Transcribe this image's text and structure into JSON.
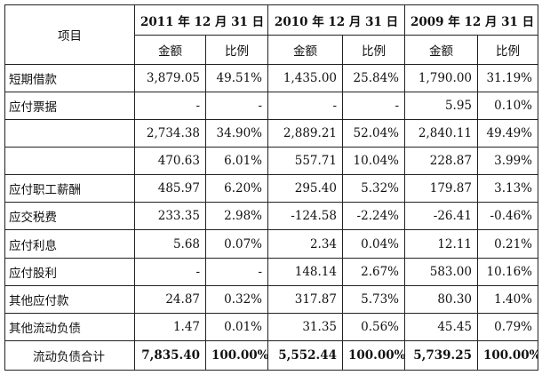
{
  "table": {
    "item_header": "项目",
    "years": [
      "2011 年 12 月 31 日",
      "2010 年 12 月 31 日",
      "2009 年 12 月 31 日"
    ],
    "sub_amount": "金额",
    "sub_ratio": "比例",
    "rows": [
      {
        "label": "短期借款",
        "v": [
          "3,879.05",
          "49.51%",
          "1,435.00",
          "25.84%",
          "1,790.00",
          "31.19%"
        ]
      },
      {
        "label": "应付票据",
        "v": [
          "-",
          "-",
          "-",
          "-",
          "5.95",
          "0.10%"
        ]
      },
      {
        "label": "",
        "v": [
          "2,734.38",
          "34.90%",
          "2,889.21",
          "52.04%",
          "2,840.11",
          "49.49%"
        ]
      },
      {
        "label": "",
        "v": [
          "470.63",
          "6.01%",
          "557.71",
          "10.04%",
          "228.87",
          "3.99%"
        ]
      },
      {
        "label": "应付职工薪酬",
        "v": [
          "485.97",
          "6.20%",
          "295.40",
          "5.32%",
          "179.87",
          "3.13%"
        ]
      },
      {
        "label": "应交税费",
        "v": [
          "233.35",
          "2.98%",
          "-124.58",
          "-2.24%",
          "-26.41",
          "-0.46%"
        ]
      },
      {
        "label": "应付利息",
        "v": [
          "5.68",
          "0.07%",
          "2.34",
          "0.04%",
          "12.11",
          "0.21%"
        ]
      },
      {
        "label": "应付股利",
        "v": [
          "-",
          "-",
          "148.14",
          "2.67%",
          "583.00",
          "10.16%"
        ]
      },
      {
        "label": "其他应付款",
        "v": [
          "24.87",
          "0.32%",
          "317.87",
          "5.73%",
          "80.30",
          "1.40%"
        ]
      },
      {
        "label": "其他流动负债",
        "v": [
          "1.47",
          "0.01%",
          "31.35",
          "0.56%",
          "45.45",
          "0.79%"
        ]
      }
    ],
    "total": {
      "label": "流动负债合计",
      "v": [
        "7,835.40",
        "100.00%",
        "5,552.44",
        "100.00%",
        "5,739.25",
        "100.00%"
      ]
    }
  }
}
